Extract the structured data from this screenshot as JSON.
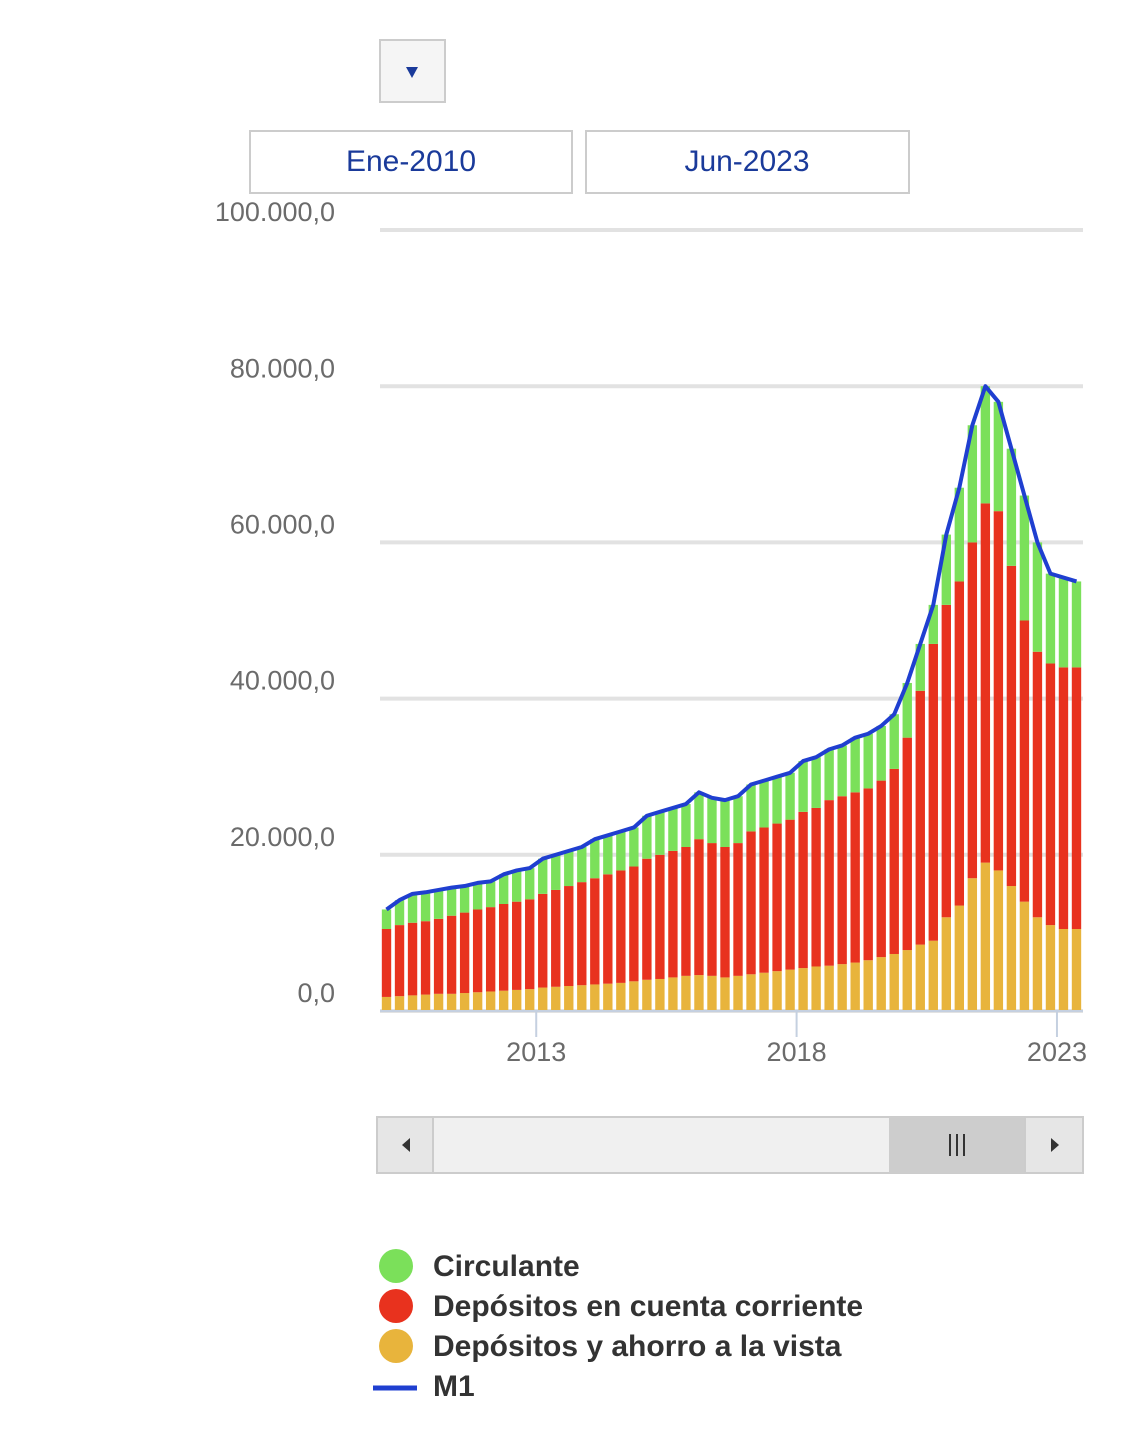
{
  "controls": {
    "from": "Ene-2010",
    "to": "Jun-2023"
  },
  "chart_data": {
    "type": "bar",
    "stacked": true,
    "x": [
      2010.0,
      2010.25,
      2010.5,
      2010.75,
      2011.0,
      2011.25,
      2011.5,
      2011.75,
      2012.0,
      2012.25,
      2012.5,
      2012.75,
      2013.0,
      2013.25,
      2013.5,
      2013.75,
      2014.0,
      2014.25,
      2014.5,
      2014.75,
      2015.0,
      2015.25,
      2015.5,
      2015.75,
      2016.0,
      2016.25,
      2016.5,
      2016.75,
      2017.0,
      2017.25,
      2017.5,
      2017.75,
      2018.0,
      2018.25,
      2018.5,
      2018.75,
      2019.0,
      2019.25,
      2019.5,
      2019.75,
      2020.0,
      2020.25,
      2020.5,
      2020.75,
      2021.0,
      2021.25,
      2021.5,
      2021.75,
      2022.0,
      2022.25,
      2022.5,
      2022.75,
      2023.0,
      2023.25
    ],
    "series": [
      {
        "name": "Circulante",
        "color": "#7be05a",
        "values": [
          2500,
          3200,
          3700,
          3700,
          3700,
          3600,
          3400,
          3400,
          3300,
          3800,
          4000,
          4000,
          4500,
          4500,
          4500,
          4500,
          5000,
          5000,
          5000,
          5000,
          5500,
          5500,
          5500,
          5500,
          6000,
          5800,
          6000,
          6000,
          6000,
          6000,
          6000,
          6000,
          6500,
          6500,
          6500,
          6500,
          7000,
          7000,
          7000,
          7000,
          7000,
          6000,
          5000,
          9000,
          12000,
          15000,
          15000,
          14000,
          15000,
          16000,
          14000,
          11500,
          11500,
          11000
        ]
      },
      {
        "name": "Depósitos en cuenta corriente",
        "color": "#e8321e",
        "values": [
          8700,
          9100,
          9300,
          9400,
          9600,
          10000,
          10300,
          10600,
          10800,
          11100,
          11300,
          11500,
          12000,
          12400,
          12800,
          13200,
          13600,
          14000,
          14400,
          14700,
          15500,
          15900,
          16200,
          16500,
          17400,
          17000,
          16700,
          17000,
          18300,
          18600,
          18900,
          19200,
          20000,
          20300,
          21200,
          21500,
          21800,
          22000,
          22600,
          23700,
          27200,
          32500,
          38000,
          40000,
          41500,
          43000,
          46000,
          46000,
          41000,
          36000,
          34000,
          33500,
          33500,
          33500
        ]
      },
      {
        "name": "Depósitos y ahorro a la vista",
        "color": "#e8b43c",
        "values": [
          1800,
          1900,
          2000,
          2100,
          2200,
          2200,
          2300,
          2400,
          2500,
          2600,
          2700,
          2800,
          3000,
          3100,
          3200,
          3300,
          3400,
          3500,
          3600,
          3800,
          4000,
          4100,
          4300,
          4500,
          4600,
          4500,
          4300,
          4500,
          4700,
          4900,
          5100,
          5300,
          5500,
          5700,
          5800,
          6000,
          6200,
          6500,
          6900,
          7300,
          7800,
          8500,
          9000,
          12000,
          13500,
          17000,
          19000,
          18000,
          16000,
          14000,
          12000,
          11000,
          10500,
          10500
        ]
      },
      {
        "name": "M1",
        "color": "#1f3fd0",
        "type": "line",
        "values": [
          13000,
          14200,
          15000,
          15200,
          15500,
          15800,
          16000,
          16400,
          16600,
          17500,
          18000,
          18300,
          19500,
          20000,
          20500,
          21000,
          22000,
          22500,
          23000,
          23500,
          25000,
          25500,
          26000,
          26500,
          28000,
          27300,
          27000,
          27500,
          29000,
          29500,
          30000,
          30500,
          32000,
          32500,
          33500,
          34000,
          35000,
          35500,
          36500,
          38000,
          42000,
          47000,
          52000,
          61000,
          67000,
          75000,
          80000,
          78000,
          72000,
          66000,
          60000,
          56000,
          55500,
          55000
        ]
      }
    ],
    "xlim": [
      2010,
      2023.5
    ],
    "xticks": [
      2013,
      2018,
      2023
    ],
    "ylim": [
      0,
      100000
    ],
    "yticks": [
      {
        "value": 0,
        "label": "0,0"
      },
      {
        "value": 20000,
        "label": "20.000,0"
      },
      {
        "value": 40000,
        "label": "40.000,0"
      },
      {
        "value": 60000,
        "label": "60.000,0"
      },
      {
        "value": 80000,
        "label": "80.000,0"
      },
      {
        "value": 100000,
        "label": "100.000,0"
      }
    ],
    "grid": true
  }
}
